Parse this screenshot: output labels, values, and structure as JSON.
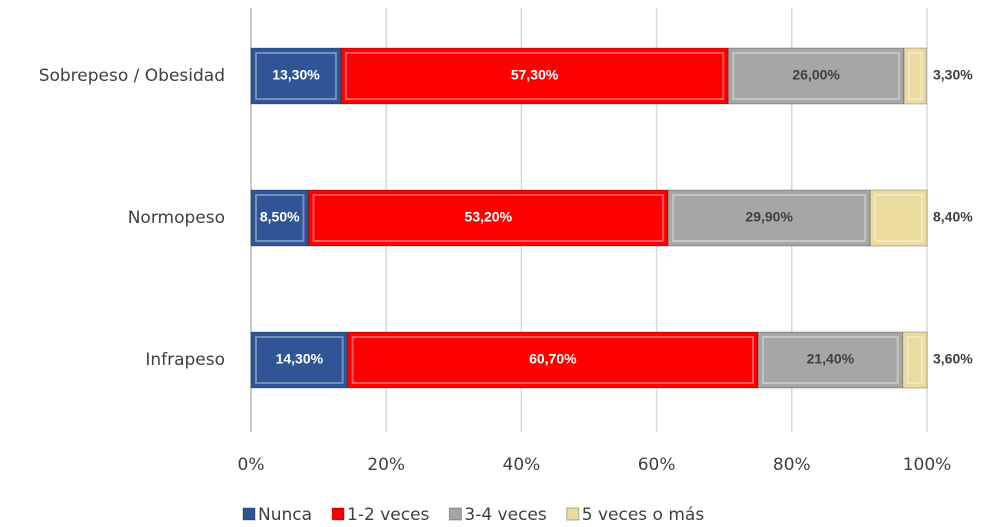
{
  "chart_data": {
    "type": "bar",
    "orientation": "horizontal",
    "stacked": true,
    "categories": [
      "Sobrepeso / Obesidad",
      "Normopeso",
      "Infrapeso"
    ],
    "series": [
      {
        "name": "Nunca",
        "color": "#2f5597",
        "values": [
          13.3,
          8.5,
          14.3
        ],
        "value_labels": [
          "13,30%",
          "8,50%",
          "14,30%"
        ]
      },
      {
        "name": "1-2 veces",
        "color": "#ff0000",
        "values": [
          57.3,
          53.2,
          60.7
        ],
        "value_labels": [
          "57,30%",
          "53,20%",
          "60,70%"
        ]
      },
      {
        "name": "3-4 veces",
        "color": "#a6a6a6",
        "values": [
          26.0,
          29.9,
          21.4
        ],
        "value_labels": [
          "26,00%",
          "29,90%",
          "21,40%"
        ]
      },
      {
        "name": "5 veces o más",
        "color": "#eadb9f",
        "values": [
          3.3,
          8.4,
          3.6
        ],
        "value_labels": [
          "3,30%",
          "8,40%",
          "3,60%"
        ]
      }
    ],
    "xlim": [
      0,
      100
    ],
    "xticks": [
      {
        "value": 0,
        "label": "0%"
      },
      {
        "value": 20,
        "label": "20%"
      },
      {
        "value": 40,
        "label": "40%"
      },
      {
        "value": 60,
        "label": "60%"
      },
      {
        "value": 80,
        "label": "80%"
      },
      {
        "value": 100,
        "label": "100%"
      }
    ],
    "grid": true,
    "legend": "bottom"
  }
}
